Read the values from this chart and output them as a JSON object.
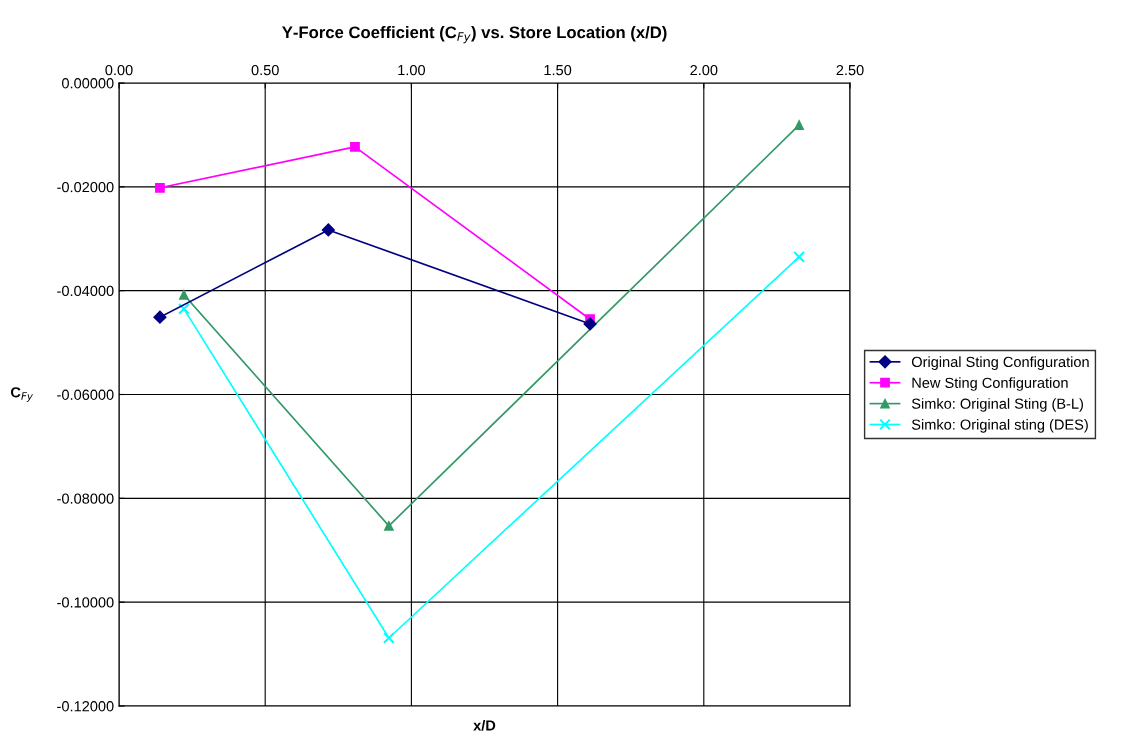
{
  "chart_data": {
    "type": "line",
    "title": "Y-Force Coefficient (C$_{Fy}$) vs. Store Location (x/D)",
    "xlabel": "x/D",
    "ylabel": "C$_{Fy}$",
    "series": [
      {
        "name": "Original Sting Configuration",
        "color": "#000080",
        "marker": "diamond",
        "x": [
          0.14,
          0.716,
          1.611
        ],
        "values": [
          -0.0451,
          -0.0283,
          -0.0464
        ]
      },
      {
        "name": "New Sting Configuration",
        "color": "#ff00ff",
        "marker": "square",
        "x": [
          0.14,
          0.807,
          1.611
        ],
        "values": [
          -0.0202,
          -0.0123,
          -0.0455
        ]
      },
      {
        "name": "Simko: Original Sting (B-L)",
        "color": "#339966",
        "marker": "triangle",
        "x": [
          0.222,
          0.923,
          2.326
        ],
        "values": [
          -0.0408,
          -0.0853,
          -0.0081
        ]
      },
      {
        "name": "Simko: Original sting (DES)",
        "color": "#00ffff",
        "marker": "cross",
        "x": [
          0.222,
          0.923,
          2.326
        ],
        "values": [
          -0.0435,
          -0.1069,
          -0.0335
        ]
      }
    ],
    "xlim": [
      0,
      2.5
    ],
    "xticks": [
      {
        "value": 0,
        "label": "0.00"
      },
      {
        "value": 0.5,
        "label": "0.50"
      },
      {
        "value": 1,
        "label": "1.00"
      },
      {
        "value": 1.5,
        "label": "1.50"
      },
      {
        "value": 2,
        "label": "2.00"
      },
      {
        "value": 2.5,
        "label": "2.50"
      }
    ],
    "ylim": [
      -0.12,
      0
    ],
    "yticks": [
      {
        "value": 0,
        "label": "0.00000"
      },
      {
        "value": -0.02,
        "label": "-0.02000"
      },
      {
        "value": -0.04,
        "label": "-0.04000"
      },
      {
        "value": -0.06,
        "label": "-0.06000"
      },
      {
        "value": -0.08,
        "label": "-0.08000"
      },
      {
        "value": -0.1,
        "label": "-0.10000"
      },
      {
        "value": -0.12,
        "label": "-0.12000"
      }
    ],
    "grid": true,
    "legend": "right",
    "line_style": "solid"
  }
}
